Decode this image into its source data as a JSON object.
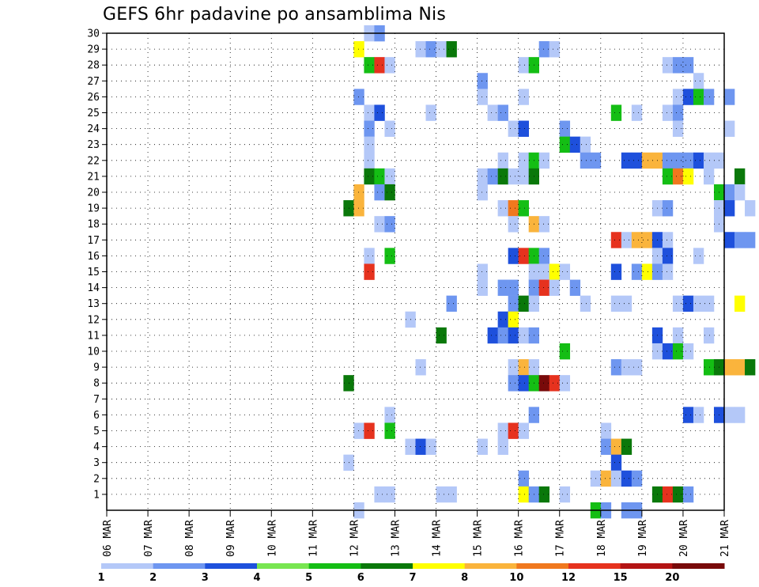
{
  "chart_data": {
    "type": "heatmap",
    "title": "GEFS 6hr padavine po ansamblima Nis",
    "x_tick_labels": [
      "06 MAR",
      "07 MAR",
      "08 MAR",
      "09 MAR",
      "10 MAR",
      "11 MAR",
      "12 MAR",
      "13 MAR",
      "14 MAR",
      "15 MAR",
      "16 MAR",
      "17 MAR",
      "18 MAR",
      "19 MAR",
      "20 MAR",
      "21 MAR"
    ],
    "x_range_days": [
      0,
      15
    ],
    "y_tick_labels": [
      "1",
      "2",
      "3",
      "4",
      "5",
      "6",
      "7",
      "8",
      "9",
      "10",
      "11",
      "12",
      "13",
      "14",
      "15",
      "16",
      "17",
      "18",
      "19",
      "20",
      "21",
      "22",
      "23",
      "24",
      "25",
      "26",
      "27",
      "28",
      "29",
      "30"
    ],
    "y_range": [
      0,
      30
    ],
    "grid": true,
    "legend": {
      "placement": "bottom",
      "labels": [
        "1",
        "2",
        "3",
        "4",
        "5",
        "6",
        "7",
        "8",
        "10",
        "12",
        "15",
        "20"
      ],
      "colors": [
        "#b4c8f8",
        "#6e96f0",
        "#1e50dc",
        "#78e650",
        "#14be14",
        "#0a780a",
        "#ffff00",
        "#fab43c",
        "#f0781e",
        "#e6321e",
        "#b41414",
        "#780a0a"
      ]
    },
    "cells": [
      [
        12.0,
        0,
        1
      ],
      [
        12.25,
        30,
        1
      ],
      [
        12.5,
        30,
        2
      ],
      [
        18.75,
        0,
        2
      ],
      [
        18.5,
        0,
        2
      ],
      [
        12.0,
        29,
        7
      ],
      [
        12.25,
        28,
        5
      ],
      [
        12.5,
        28,
        10
      ],
      [
        12.75,
        28,
        1
      ],
      [
        13.5,
        29,
        1
      ],
      [
        13.75,
        29,
        2
      ],
      [
        14.0,
        29,
        1
      ],
      [
        14.25,
        29,
        6
      ],
      [
        16.0,
        28,
        1
      ],
      [
        16.25,
        28,
        5
      ],
      [
        16.5,
        29,
        2
      ],
      [
        16.75,
        29,
        1
      ],
      [
        19.5,
        28,
        1
      ],
      [
        19.75,
        28,
        2
      ],
      [
        20.0,
        28,
        2
      ],
      [
        15.0,
        27,
        2
      ],
      [
        20.0,
        26,
        1
      ],
      [
        20.25,
        27,
        1
      ],
      [
        12.0,
        26,
        2
      ],
      [
        15.0,
        26,
        1
      ],
      [
        16.0,
        26,
        1
      ],
      [
        19.75,
        26,
        1
      ],
      [
        20.0,
        26,
        3
      ],
      [
        20.25,
        26,
        5
      ],
      [
        20.5,
        26,
        2
      ],
      [
        21.0,
        26,
        2
      ],
      [
        12.25,
        25,
        1
      ],
      [
        12.5,
        25,
        3
      ],
      [
        13.75,
        25,
        1
      ],
      [
        15.25,
        25,
        1
      ],
      [
        15.5,
        25,
        2
      ],
      [
        18.25,
        25,
        5
      ],
      [
        18.75,
        25,
        1
      ],
      [
        19.5,
        25,
        1
      ],
      [
        19.75,
        25,
        2
      ],
      [
        12.25,
        24,
        2
      ],
      [
        12.75,
        24,
        1
      ],
      [
        15.75,
        24,
        1
      ],
      [
        16.0,
        24,
        3
      ],
      [
        17.0,
        24,
        2
      ],
      [
        19.75,
        24,
        1
      ],
      [
        21.0,
        24,
        1
      ],
      [
        12.25,
        23,
        1
      ],
      [
        17.0,
        23,
        5
      ],
      [
        17.25,
        23,
        3
      ],
      [
        17.5,
        23,
        1
      ],
      [
        12.25,
        22,
        1
      ],
      [
        15.5,
        22,
        1
      ],
      [
        16.0,
        22,
        1
      ],
      [
        16.25,
        22,
        5
      ],
      [
        16.5,
        22,
        1
      ],
      [
        17.5,
        22,
        2
      ],
      [
        17.75,
        22,
        2
      ],
      [
        18.5,
        22,
        3
      ],
      [
        18.75,
        22,
        3
      ],
      [
        19.0,
        22,
        8
      ],
      [
        19.25,
        22,
        8
      ],
      [
        19.5,
        22,
        2
      ],
      [
        19.75,
        22,
        2
      ],
      [
        20.0,
        22,
        2
      ],
      [
        20.25,
        22,
        3
      ],
      [
        20.5,
        22,
        1
      ],
      [
        20.75,
        22,
        1
      ],
      [
        12.25,
        21,
        6
      ],
      [
        12.5,
        21,
        5
      ],
      [
        12.75,
        21,
        1
      ],
      [
        15.0,
        21,
        1
      ],
      [
        15.25,
        21,
        2
      ],
      [
        15.5,
        21,
        6
      ],
      [
        15.75,
        21,
        1
      ],
      [
        16.0,
        21,
        1
      ],
      [
        16.25,
        21,
        6
      ],
      [
        19.5,
        21,
        5
      ],
      [
        19.75,
        21,
        9
      ],
      [
        20.0,
        21,
        7
      ],
      [
        20.5,
        21,
        1
      ],
      [
        21.25,
        21,
        6
      ],
      [
        12.0,
        20,
        8
      ],
      [
        12.5,
        20,
        2
      ],
      [
        12.75,
        20,
        6
      ],
      [
        15.0,
        20,
        1
      ],
      [
        20.75,
        20,
        5
      ],
      [
        21.0,
        20,
        2
      ],
      [
        21.25,
        20,
        1
      ],
      [
        11.75,
        19,
        6
      ],
      [
        12.0,
        19,
        8
      ],
      [
        15.5,
        19,
        1
      ],
      [
        15.75,
        19,
        9
      ],
      [
        16.0,
        19,
        5
      ],
      [
        19.25,
        19,
        1
      ],
      [
        19.5,
        19,
        2
      ],
      [
        20.75,
        19,
        1
      ],
      [
        21.0,
        19,
        3
      ],
      [
        21.5,
        19,
        1
      ],
      [
        12.5,
        18,
        1
      ],
      [
        12.75,
        18,
        2
      ],
      [
        15.75,
        18,
        1
      ],
      [
        16.25,
        18,
        8
      ],
      [
        16.5,
        18,
        1
      ],
      [
        20.75,
        18,
        1
      ],
      [
        18.25,
        17,
        10
      ],
      [
        18.5,
        17,
        1
      ],
      [
        18.75,
        17,
        8
      ],
      [
        19.0,
        17,
        8
      ],
      [
        19.25,
        17,
        3
      ],
      [
        19.5,
        17,
        1
      ],
      [
        21.0,
        17,
        3
      ],
      [
        21.25,
        17,
        2
      ],
      [
        21.5,
        17,
        2
      ],
      [
        12.25,
        16,
        1
      ],
      [
        12.75,
        16,
        5
      ],
      [
        15.75,
        16,
        3
      ],
      [
        16.0,
        16,
        10
      ],
      [
        16.25,
        16,
        5
      ],
      [
        16.5,
        16,
        2
      ],
      [
        19.25,
        16,
        1
      ],
      [
        19.5,
        16,
        3
      ],
      [
        20.25,
        16,
        1
      ],
      [
        12.25,
        15,
        10
      ],
      [
        15.0,
        15,
        1
      ],
      [
        16.25,
        15,
        1
      ],
      [
        16.5,
        15,
        1
      ],
      [
        16.75,
        15,
        7
      ],
      [
        17.0,
        15,
        1
      ],
      [
        18.25,
        15,
        3
      ],
      [
        18.75,
        15,
        2
      ],
      [
        19.0,
        15,
        7
      ],
      [
        19.25,
        15,
        2
      ],
      [
        19.5,
        15,
        1
      ],
      [
        15.0,
        14,
        1
      ],
      [
        15.5,
        14,
        2
      ],
      [
        15.75,
        14,
        2
      ],
      [
        16.25,
        14,
        2
      ],
      [
        16.5,
        14,
        10
      ],
      [
        16.75,
        14,
        1
      ],
      [
        17.25,
        14,
        2
      ],
      [
        14.25,
        13,
        2
      ],
      [
        15.75,
        13,
        2
      ],
      [
        16.0,
        13,
        6
      ],
      [
        16.25,
        13,
        1
      ],
      [
        17.5,
        13,
        1
      ],
      [
        18.25,
        13,
        1
      ],
      [
        18.5,
        13,
        1
      ],
      [
        19.75,
        13,
        1
      ],
      [
        20.0,
        13,
        3
      ],
      [
        20.25,
        13,
        1
      ],
      [
        20.5,
        13,
        1
      ],
      [
        21.25,
        13,
        7
      ],
      [
        13.25,
        12,
        1
      ],
      [
        15.5,
        12,
        3
      ],
      [
        15.75,
        12,
        7
      ],
      [
        14.0,
        11,
        6
      ],
      [
        15.25,
        11,
        3
      ],
      [
        15.5,
        11,
        2
      ],
      [
        15.75,
        11,
        3
      ],
      [
        16.0,
        11,
        1
      ],
      [
        16.25,
        11,
        2
      ],
      [
        19.25,
        11,
        3
      ],
      [
        19.75,
        11,
        1
      ],
      [
        20.5,
        11,
        1
      ],
      [
        17.0,
        10,
        5
      ],
      [
        19.25,
        10,
        1
      ],
      [
        19.5,
        10,
        3
      ],
      [
        19.75,
        10,
        5
      ],
      [
        20.0,
        10,
        1
      ],
      [
        13.5,
        9,
        1
      ],
      [
        15.75,
        9,
        1
      ],
      [
        16.0,
        9,
        8
      ],
      [
        16.25,
        9,
        1
      ],
      [
        18.25,
        9,
        2
      ],
      [
        18.5,
        9,
        1
      ],
      [
        18.75,
        9,
        1
      ],
      [
        20.5,
        9,
        5
      ],
      [
        20.75,
        9,
        6
      ],
      [
        21.0,
        9,
        8
      ],
      [
        21.25,
        9,
        8
      ],
      [
        21.5,
        9,
        6
      ],
      [
        11.75,
        8,
        6
      ],
      [
        15.75,
        8,
        2
      ],
      [
        16.0,
        8,
        3
      ],
      [
        16.25,
        8,
        5
      ],
      [
        16.5,
        8,
        12
      ],
      [
        16.75,
        8,
        10
      ],
      [
        17.0,
        8,
        1
      ],
      [
        12.75,
        6,
        1
      ],
      [
        16.25,
        6,
        2
      ],
      [
        20.0,
        6,
        3
      ],
      [
        20.25,
        6,
        1
      ],
      [
        20.75,
        6,
        3
      ],
      [
        21.0,
        6,
        1
      ],
      [
        21.25,
        6,
        1
      ],
      [
        12.0,
        5,
        1
      ],
      [
        12.25,
        5,
        10
      ],
      [
        12.75,
        5,
        5
      ],
      [
        15.5,
        5,
        1
      ],
      [
        15.75,
        5,
        10
      ],
      [
        16.0,
        5,
        1
      ],
      [
        18.0,
        5,
        1
      ],
      [
        13.25,
        4,
        1
      ],
      [
        13.5,
        4,
        3
      ],
      [
        13.75,
        4,
        1
      ],
      [
        15.0,
        4,
        1
      ],
      [
        15.5,
        4,
        1
      ],
      [
        18.0,
        4,
        2
      ],
      [
        18.25,
        4,
        8
      ],
      [
        18.5,
        4,
        6
      ],
      [
        11.75,
        3,
        1
      ],
      [
        18.25,
        3,
        3
      ],
      [
        16.0,
        2,
        2
      ],
      [
        17.75,
        2,
        1
      ],
      [
        18.0,
        2,
        8
      ],
      [
        18.25,
        2,
        1
      ],
      [
        18.5,
        2,
        3
      ],
      [
        18.75,
        2,
        2
      ],
      [
        12.5,
        1,
        1
      ],
      [
        12.75,
        1,
        1
      ],
      [
        14.0,
        1,
        1
      ],
      [
        14.25,
        1,
        1
      ],
      [
        16.0,
        1,
        7
      ],
      [
        16.25,
        1,
        2
      ],
      [
        16.5,
        1,
        6
      ],
      [
        17.0,
        1,
        1
      ],
      [
        19.25,
        1,
        6
      ],
      [
        19.5,
        1,
        10
      ],
      [
        19.75,
        1,
        6
      ],
      [
        20.0,
        1,
        2
      ],
      [
        17.75,
        0,
        5
      ],
      [
        18.0,
        0,
        2
      ]
    ]
  }
}
